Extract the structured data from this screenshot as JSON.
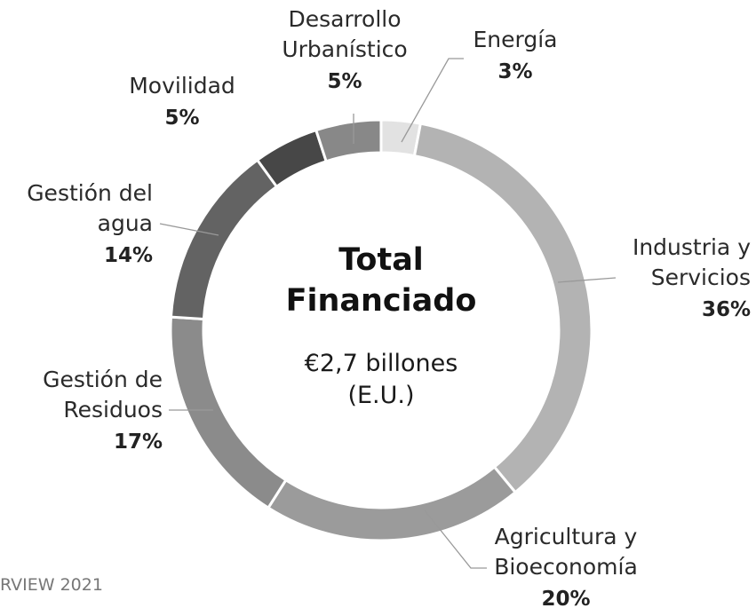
{
  "chart_data": {
    "type": "donut",
    "categories": [
      "Energía",
      "Industria y\nServicios",
      "Agricultura y\nBioeconomía",
      "Gestión de\nResiduos",
      "Gestión del\nagua",
      "Movilidad",
      "Desarrollo\nUrbanístico"
    ],
    "values": [
      3,
      36,
      20,
      17,
      14,
      5,
      5
    ],
    "value_labels": [
      "3%",
      "36%",
      "20%",
      "17%",
      "14%",
      "5%",
      "5%"
    ],
    "colors": [
      "#e2e2e2",
      "#b3b3b3",
      "#9b9b9b",
      "#8b8b8b",
      "#636363",
      "#474747",
      "#888888"
    ],
    "center_title": "Total\nFinanciado",
    "center_subtitle": "€2,7 billones\n(E.U.)",
    "source": "RVIEW 2021"
  }
}
